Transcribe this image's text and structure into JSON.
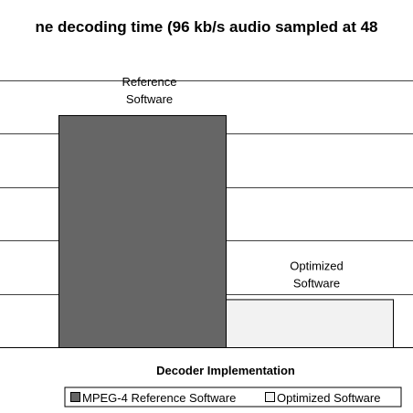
{
  "chart_data": {
    "type": "bar",
    "title": "ne decoding time (96 kb/s audio sampled at 48",
    "xlabel": "Decoder Implementation",
    "ylabel": "",
    "ylim": [
      0,
      5
    ],
    "grid": true,
    "legend_position": "bottom",
    "series": [
      {
        "name": "MPEG-4 Reference Software",
        "value": 4.35,
        "label": [
          "Reference",
          "Software"
        ],
        "color": "#666666"
      },
      {
        "name": "Optimized Software",
        "value": 0.9,
        "label": [
          "Optimized",
          "Software"
        ],
        "color": "#f2f2f2"
      }
    ]
  }
}
